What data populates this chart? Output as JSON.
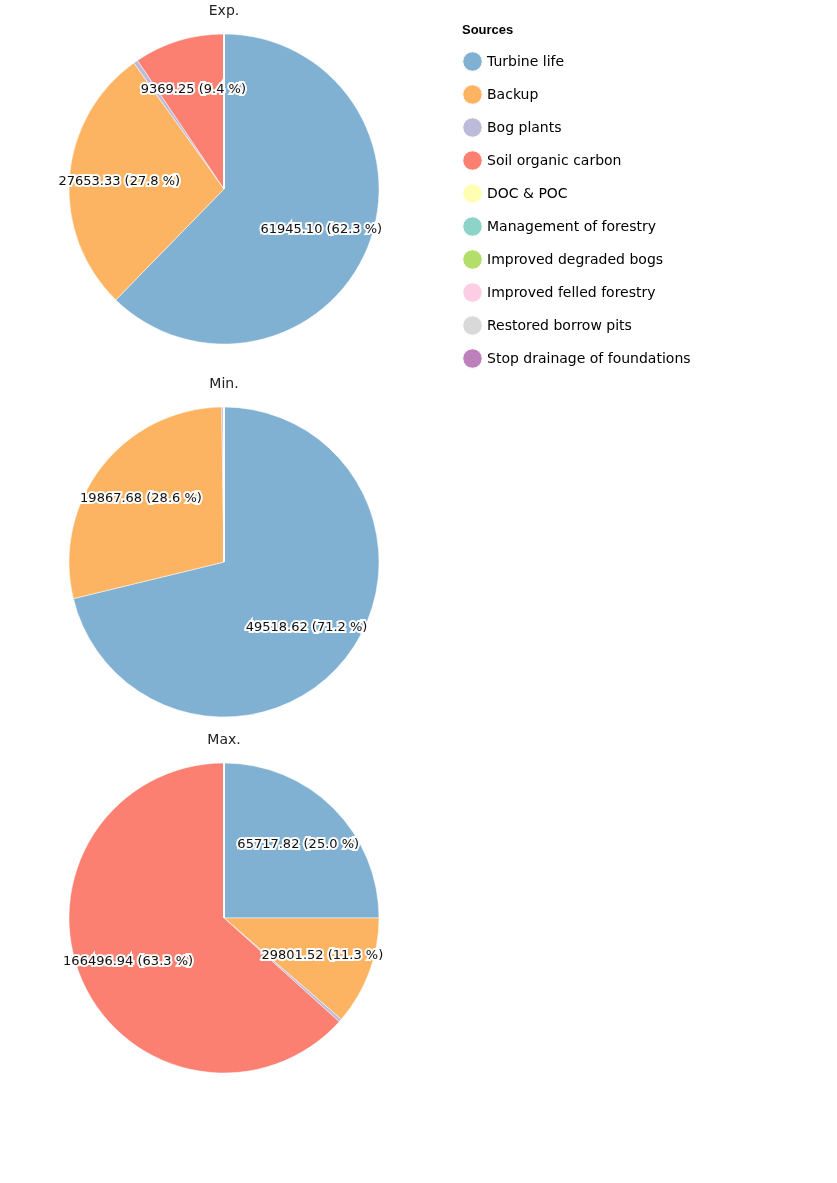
{
  "chart_data": [
    {
      "type": "pie",
      "title": "Exp.",
      "legend_title": "Sources",
      "legend": "right",
      "categories": [
        "Turbine life",
        "Backup",
        "Bog plants",
        "Soil organic carbon",
        "DOC & POC",
        "Management of forestry",
        "Improved degraded bogs",
        "Improved felled forestry",
        "Restored borrow pits",
        "Stop drainage of foundations"
      ],
      "values": [
        61945.1,
        27653.33,
        460,
        9369.25,
        0,
        0,
        0,
        0,
        0,
        0
      ],
      "value_labels": [
        "61945.10 (62.3 %)",
        "27653.33 (27.8 %)",
        null,
        "9369.25 (9.4 %)",
        null,
        null,
        null,
        null,
        null,
        null
      ],
      "colors": [
        "#80b1d3",
        "#fdb462",
        "#bebada",
        "#fb8072",
        "#ffffb3",
        "#8dd3c7",
        "#b3de69",
        "#fccde5",
        "#d9d9d9",
        "#bc80bd"
      ]
    },
    {
      "type": "pie",
      "title": "Min.",
      "categories": [
        null,
        null,
        null,
        null,
        null,
        null,
        null,
        null,
        null,
        null
      ],
      "values": [
        49518.62,
        19867.68,
        160,
        0,
        0,
        0,
        0,
        0,
        0,
        0
      ],
      "value_labels": [
        "49518.62 (71.2 %)",
        "19867.68 (28.6 %)",
        null,
        null,
        null,
        null,
        null,
        null,
        null,
        null
      ],
      "colors": [
        "#80b1d3",
        "#fdb462",
        "#bebada",
        "#fb8072",
        "#ffffb3",
        "#8dd3c7",
        "#b3de69",
        "#fccde5",
        "#d9d9d9",
        "#bc80bd"
      ]
    },
    {
      "type": "pie",
      "title": "Max.",
      "categories": [
        null,
        null,
        null,
        null,
        null,
        null,
        null,
        null,
        null,
        null
      ],
      "values": [
        65717.82,
        29801.52,
        850,
        166496.94,
        0,
        0,
        0,
        0,
        0,
        0
      ],
      "value_labels": [
        "65717.82 (25.0 %)",
        "29801.52 (11.3 %)",
        null,
        "166496.94 (63.3 %)",
        null,
        null,
        null,
        null,
        null,
        null
      ],
      "colors": [
        "#80b1d3",
        "#fdb462",
        "#bebada",
        "#fb8072",
        "#ffffb3",
        "#8dd3c7",
        "#b3de69",
        "#fccde5",
        "#d9d9d9",
        "#bc80bd"
      ]
    }
  ]
}
